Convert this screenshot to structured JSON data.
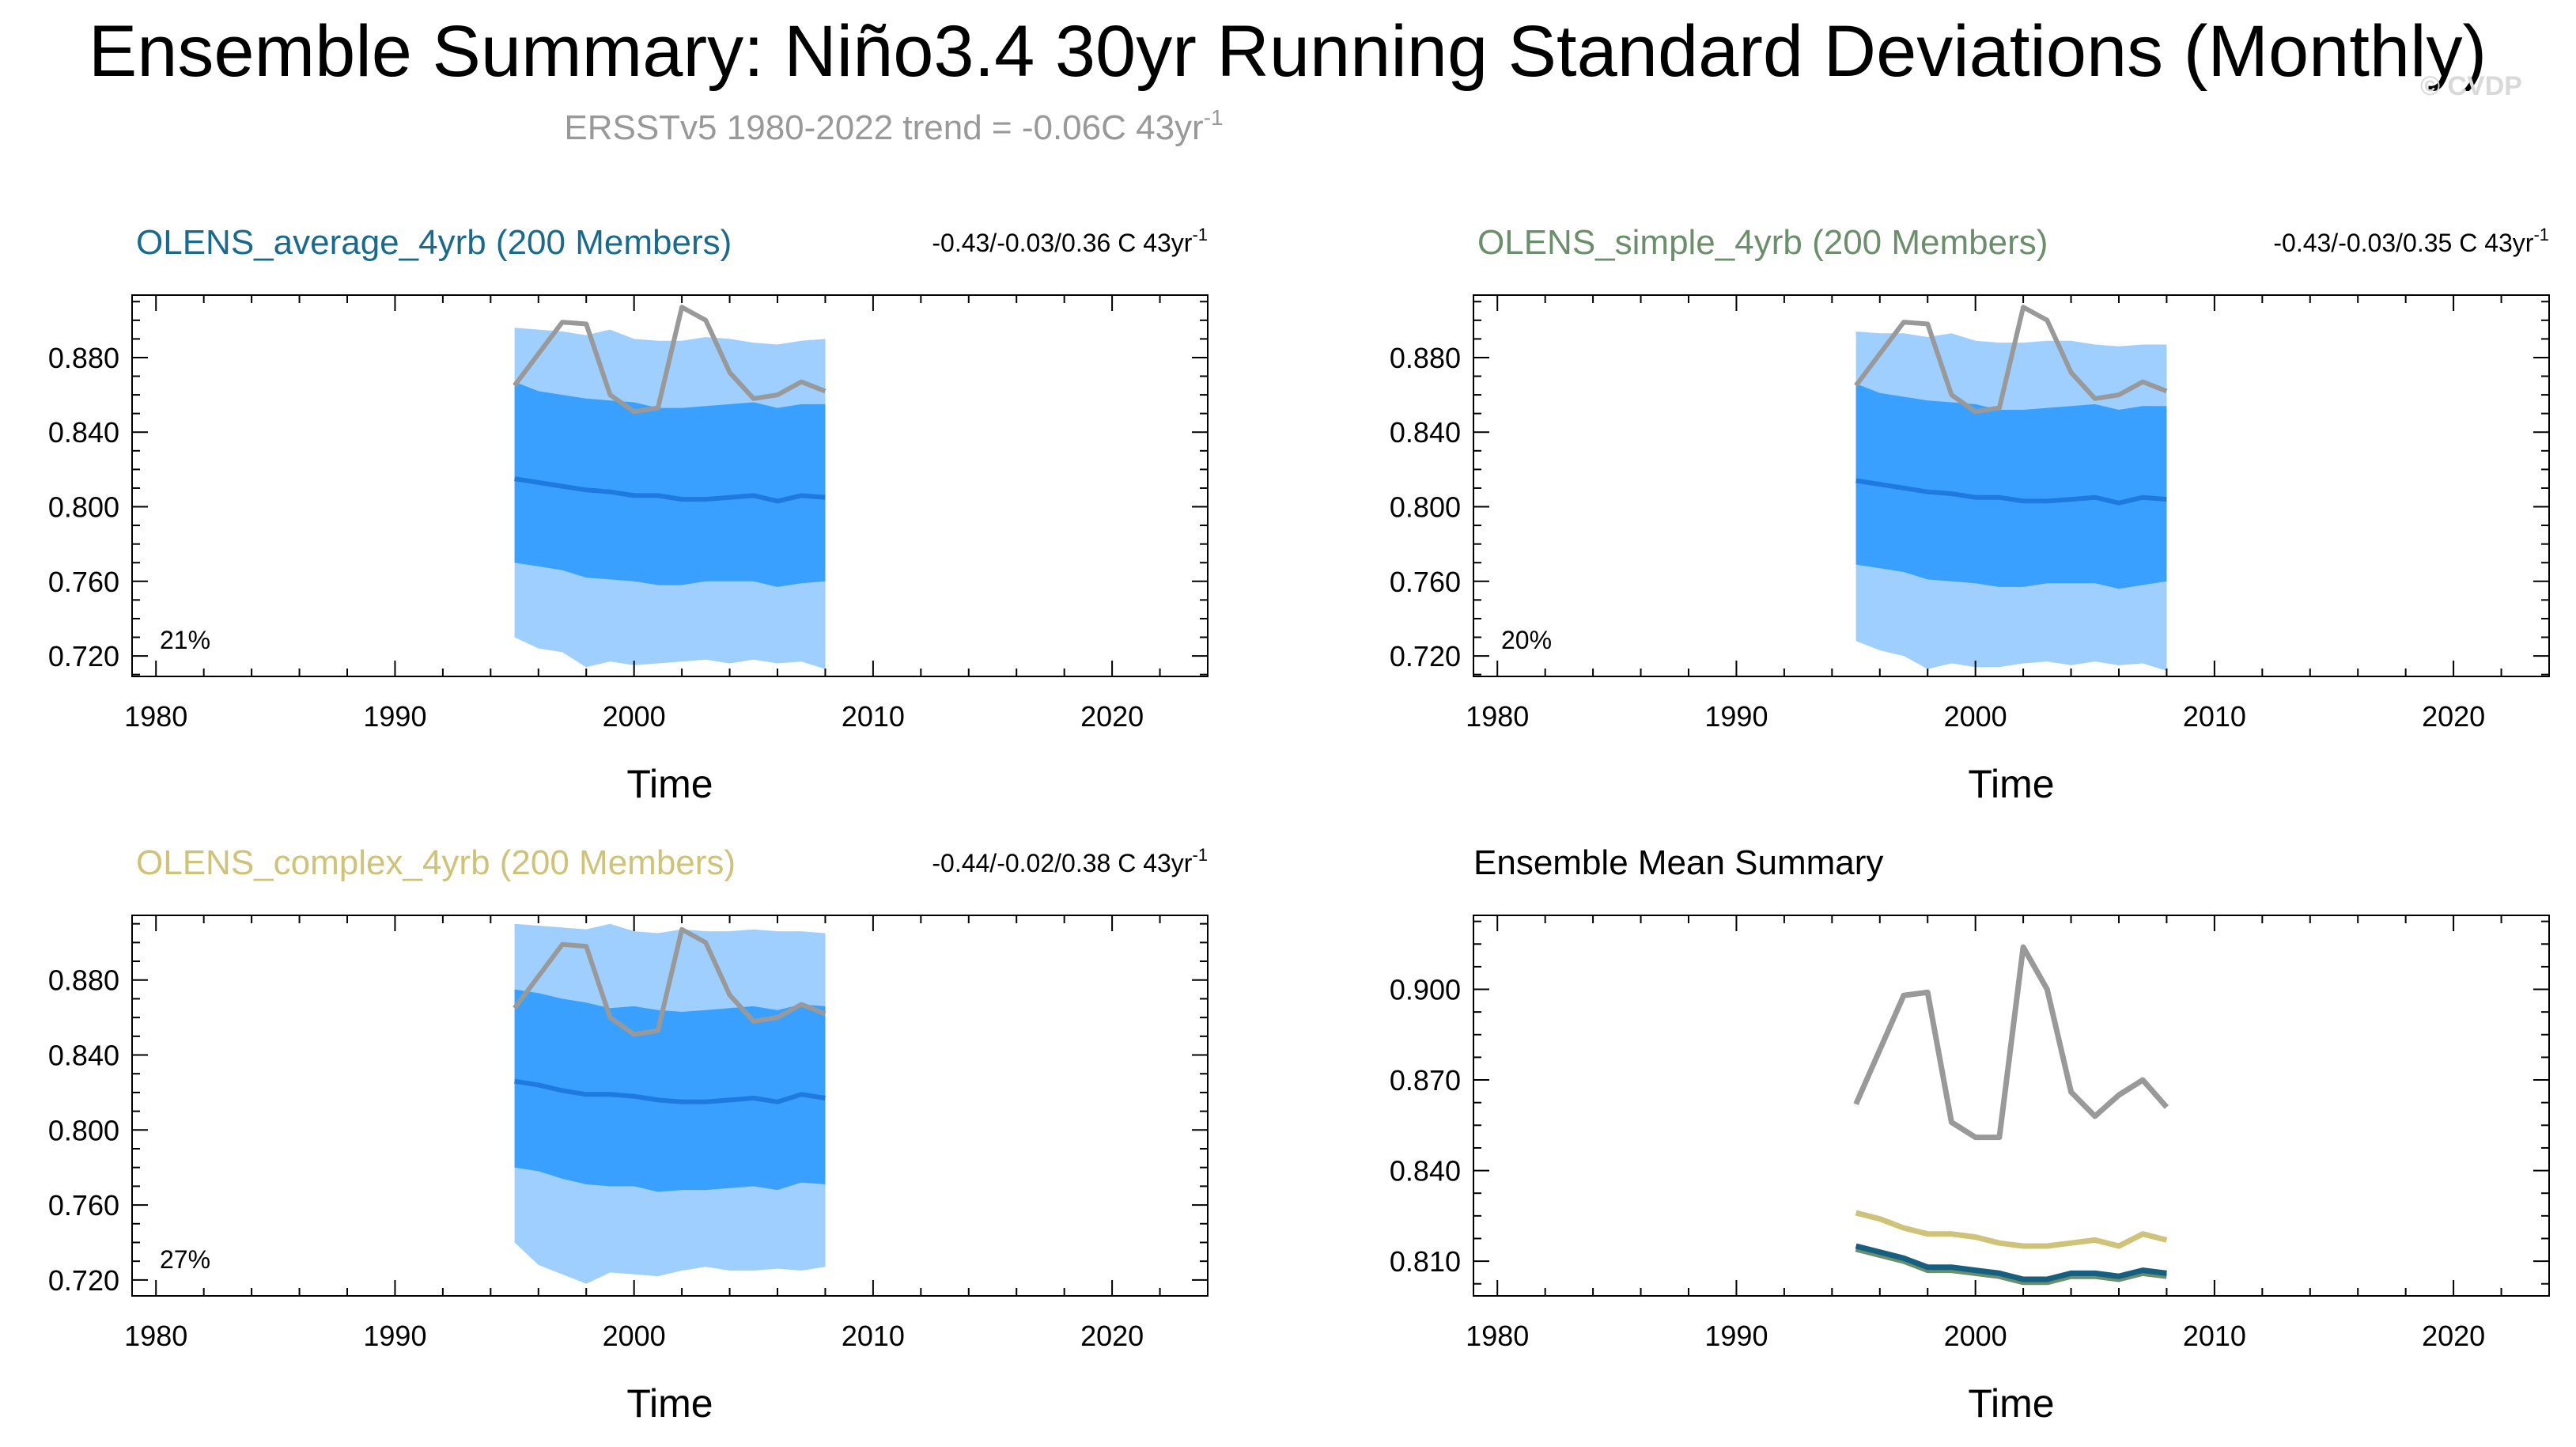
{
  "figure": {
    "title": "Ensemble Summary: Niño3.4 30yr Running Standard Deviations (Monthly)",
    "subtitle_prefix": "ERSSTv5 1980-2022 trend = -0.06C 43yr",
    "subtitle_sup": "-1",
    "watermark": "© CVDP"
  },
  "chart_data": [
    {
      "type": "area",
      "panel": "top-left",
      "title": "OLENS_average_4yrb (200 Members)",
      "title_color": "#1a6a8e",
      "trend_text": "-0.43/-0.03/0.36 C 43yr",
      "trend_sup": "-1",
      "percent_label": "21%",
      "xlabel": "Time",
      "xlim": [
        1979,
        2024
      ],
      "ylim": [
        0.709,
        0.9135
      ],
      "xticks": [
        "1980",
        "1990",
        "2000",
        "2010",
        "2020"
      ],
      "yticks": [
        "0.720",
        "0.760",
        "0.800",
        "0.840",
        "0.880"
      ],
      "x": [
        1995.0,
        1996.0,
        1997.0,
        1998.0,
        1999.0,
        2000.0,
        2001.0,
        2002.0,
        2003.0,
        2004.0,
        2005.0,
        2006.0,
        2007.0,
        2008.0
      ],
      "observed": [
        0.865,
        0.882,
        0.899,
        0.898,
        0.86,
        0.851,
        0.853,
        0.907,
        0.9,
        0.872,
        0.858,
        0.86,
        0.867,
        0.862
      ],
      "mean": [
        0.815,
        0.813,
        0.811,
        0.809,
        0.808,
        0.806,
        0.806,
        0.804,
        0.804,
        0.805,
        0.806,
        0.803,
        0.806,
        0.805
      ],
      "inner_upper": [
        0.867,
        0.862,
        0.86,
        0.858,
        0.857,
        0.856,
        0.853,
        0.853,
        0.854,
        0.855,
        0.856,
        0.853,
        0.855,
        0.855
      ],
      "inner_lower": [
        0.77,
        0.768,
        0.766,
        0.762,
        0.761,
        0.76,
        0.758,
        0.758,
        0.76,
        0.76,
        0.76,
        0.757,
        0.759,
        0.76
      ],
      "outer_upper": [
        0.896,
        0.895,
        0.894,
        0.892,
        0.895,
        0.89,
        0.889,
        0.889,
        0.891,
        0.89,
        0.888,
        0.887,
        0.889,
        0.89
      ],
      "outer_lower": [
        0.73,
        0.724,
        0.722,
        0.714,
        0.717,
        0.715,
        0.716,
        0.717,
        0.718,
        0.716,
        0.718,
        0.716,
        0.717,
        0.713
      ]
    },
    {
      "type": "area",
      "panel": "top-right",
      "title": "OLENS_simple_4yrb (200 Members)",
      "title_color": "#6b8e6b",
      "trend_text": "-0.43/-0.03/0.35 C 43yr",
      "trend_sup": "-1",
      "percent_label": "20%",
      "xlabel": "Time",
      "xlim": [
        1979,
        2024
      ],
      "ylim": [
        0.709,
        0.9135
      ],
      "xticks": [
        "1980",
        "1990",
        "2000",
        "2010",
        "2020"
      ],
      "yticks": [
        "0.720",
        "0.760",
        "0.800",
        "0.840",
        "0.880"
      ],
      "x": [
        1995.0,
        1996.0,
        1997.0,
        1998.0,
        1999.0,
        2000.0,
        2001.0,
        2002.0,
        2003.0,
        2004.0,
        2005.0,
        2006.0,
        2007.0,
        2008.0
      ],
      "observed": [
        0.865,
        0.882,
        0.899,
        0.898,
        0.86,
        0.851,
        0.853,
        0.907,
        0.9,
        0.872,
        0.858,
        0.86,
        0.867,
        0.862
      ],
      "mean": [
        0.814,
        0.812,
        0.81,
        0.808,
        0.807,
        0.805,
        0.805,
        0.803,
        0.803,
        0.804,
        0.805,
        0.802,
        0.805,
        0.804
      ],
      "inner_upper": [
        0.866,
        0.861,
        0.859,
        0.857,
        0.856,
        0.855,
        0.852,
        0.852,
        0.853,
        0.854,
        0.855,
        0.852,
        0.854,
        0.854
      ],
      "inner_lower": [
        0.769,
        0.767,
        0.765,
        0.761,
        0.76,
        0.759,
        0.757,
        0.757,
        0.759,
        0.759,
        0.759,
        0.756,
        0.758,
        0.76
      ],
      "outer_upper": [
        0.894,
        0.893,
        0.893,
        0.891,
        0.893,
        0.889,
        0.888,
        0.888,
        0.889,
        0.889,
        0.887,
        0.886,
        0.887,
        0.887
      ],
      "outer_lower": [
        0.728,
        0.723,
        0.72,
        0.713,
        0.716,
        0.714,
        0.714,
        0.716,
        0.717,
        0.715,
        0.717,
        0.715,
        0.716,
        0.712
      ]
    },
    {
      "type": "area",
      "panel": "bottom-left",
      "title": "OLENS_complex_4yrb (200 Members)",
      "title_color": "#cfc37a",
      "trend_text": "-0.44/-0.02/0.38 C 43yr",
      "trend_sup": "-1",
      "percent_label": "27%",
      "xlabel": "Time",
      "xlim": [
        1979,
        2024
      ],
      "ylim": [
        0.7115,
        0.9145
      ],
      "xticks": [
        "1980",
        "1990",
        "2000",
        "2010",
        "2020"
      ],
      "yticks": [
        "0.720",
        "0.760",
        "0.800",
        "0.840",
        "0.880"
      ],
      "x": [
        1995.0,
        1996.0,
        1997.0,
        1998.0,
        1999.0,
        2000.0,
        2001.0,
        2002.0,
        2003.0,
        2004.0,
        2005.0,
        2006.0,
        2007.0,
        2008.0
      ],
      "observed": [
        0.865,
        0.882,
        0.899,
        0.898,
        0.86,
        0.851,
        0.853,
        0.907,
        0.9,
        0.872,
        0.858,
        0.86,
        0.867,
        0.862
      ],
      "mean": [
        0.826,
        0.824,
        0.821,
        0.819,
        0.819,
        0.818,
        0.816,
        0.815,
        0.815,
        0.816,
        0.817,
        0.815,
        0.819,
        0.817
      ],
      "inner_upper": [
        0.875,
        0.873,
        0.87,
        0.868,
        0.865,
        0.866,
        0.864,
        0.863,
        0.864,
        0.865,
        0.866,
        0.864,
        0.867,
        0.866
      ],
      "inner_lower": [
        0.78,
        0.778,
        0.774,
        0.771,
        0.77,
        0.77,
        0.767,
        0.768,
        0.768,
        0.769,
        0.77,
        0.768,
        0.772,
        0.771
      ],
      "outer_upper": [
        0.91,
        0.909,
        0.908,
        0.907,
        0.91,
        0.906,
        0.905,
        0.907,
        0.906,
        0.906,
        0.907,
        0.906,
        0.906,
        0.905
      ],
      "outer_lower": [
        0.74,
        0.728,
        0.723,
        0.718,
        0.724,
        0.723,
        0.722,
        0.725,
        0.727,
        0.725,
        0.725,
        0.726,
        0.725,
        0.727
      ]
    },
    {
      "type": "line",
      "panel": "bottom-right",
      "title": "Ensemble Mean Summary",
      "title_color": "#000000",
      "xlabel": "Time",
      "xlim": [
        1979,
        2024
      ],
      "ylim": [
        0.7985,
        0.9245
      ],
      "xticks": [
        "1980",
        "1990",
        "2000",
        "2010",
        "2020"
      ],
      "yticks": [
        "0.810",
        "0.840",
        "0.870",
        "0.900"
      ],
      "x": [
        1995.0,
        1996.0,
        1997.0,
        1998.0,
        1999.0,
        2000.0,
        2001.0,
        2002.0,
        2003.0,
        2004.0,
        2005.0,
        2006.0,
        2007.0,
        2008.0
      ],
      "series": [
        {
          "name": "ERSSTv5",
          "color": "#999999",
          "values": [
            0.862,
            0.88,
            0.898,
            0.899,
            0.856,
            0.851,
            0.851,
            0.914,
            0.9,
            0.866,
            0.858,
            0.865,
            0.87,
            0.861
          ]
        },
        {
          "name": "OLENS_complex_4yrb",
          "color": "#cfc37a",
          "values": [
            0.826,
            0.824,
            0.821,
            0.819,
            0.819,
            0.818,
            0.816,
            0.815,
            0.815,
            0.816,
            0.817,
            0.815,
            0.819,
            0.817
          ]
        },
        {
          "name": "OLENS_simple_4yrb",
          "color": "#6b8e6b",
          "values": [
            0.814,
            0.812,
            0.81,
            0.807,
            0.807,
            0.806,
            0.805,
            0.803,
            0.803,
            0.805,
            0.805,
            0.804,
            0.806,
            0.805
          ]
        },
        {
          "name": "OLENS_average_4yrb",
          "color": "#155f80",
          "values": [
            0.815,
            0.813,
            0.811,
            0.808,
            0.808,
            0.807,
            0.806,
            0.804,
            0.804,
            0.806,
            0.806,
            0.805,
            0.807,
            0.806
          ]
        }
      ]
    }
  ],
  "colors": {
    "outer_band": "#9fcfff",
    "inner_band": "#3aa0ff",
    "ensemble_mean": "#1f7ae0",
    "observed": "#999999",
    "subtitle": "#999999"
  }
}
